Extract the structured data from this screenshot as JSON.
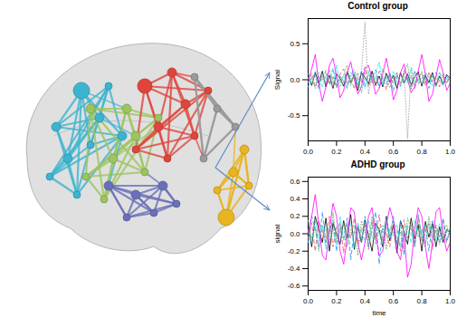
{
  "chart_data": [
    {
      "type": "line",
      "title": "Control group",
      "y_label": "Signal",
      "xlim": [
        0,
        1
      ],
      "xticks": [
        {
          "value": 0,
          "label": "0.0"
        },
        0.2,
        0.4,
        0.6,
        0.8,
        {
          "value": 1,
          "label": "1.0"
        }
      ],
      "ylim": [
        -0.85,
        0.85
      ],
      "yticks": [
        {
          "value": -0.5,
          "label": "-0.5"
        },
        {
          "value": 0,
          "label": "0.0"
        },
        {
          "value": 0.5,
          "label": "0.5"
        }
      ],
      "x": [
        0,
        0.025,
        0.05,
        0.075,
        0.1,
        0.125,
        0.15,
        0.175,
        0.2,
        0.225,
        0.25,
        0.275,
        0.3,
        0.325,
        0.35,
        0.375,
        0.4,
        0.425,
        0.45,
        0.475,
        0.5,
        0.525,
        0.55,
        0.575,
        0.6,
        0.625,
        0.65,
        0.675,
        0.7,
        0.725,
        0.75,
        0.775,
        0.8,
        0.825,
        0.85,
        0.875,
        0.9,
        0.925,
        0.95,
        0.975,
        1
      ],
      "series": [
        {
          "color": "#000000",
          "line_style": "solid",
          "values": [
            0.05,
            -0.08,
            0.1,
            -0.05,
            0.12,
            -0.1,
            0.06,
            -0.12,
            0.08,
            0.02,
            -0.09,
            0.11,
            -0.04,
            0.07,
            -0.15,
            0.1,
            0.03,
            -0.06,
            0.12,
            -0.08,
            0.05,
            -0.1,
            0.09,
            -0.03,
            0.06,
            -0.12,
            0.1,
            -0.05,
            0.08,
            -0.07,
            0.04,
            0.11,
            -0.09,
            0.06,
            -0.04,
            0.1,
            -0.08,
            0.05,
            -0.06,
            0.07,
            0.02
          ]
        },
        {
          "color": "#df536b",
          "line_style": "dashed",
          "values": [
            -0.04,
            0.09,
            -0.1,
            0.06,
            -0.02,
            0.13,
            -0.07,
            0.04,
            -0.11,
            0.08,
            0.15,
            -0.06,
            0.03,
            -0.13,
            0.09,
            -0.04,
            0.18,
            -0.1,
            0.05,
            -0.08,
            0.12,
            0.02,
            -0.14,
            0.07,
            -0.05,
            0.1,
            -0.09,
            0.13,
            -0.02,
            0.06,
            -0.12,
            0.04,
            0.09,
            -0.07,
            0.11,
            -0.03,
            0.05,
            -0.1,
            0.08,
            -0.04,
            0.06
          ]
        },
        {
          "color": "#4daf4a",
          "line_style": "dotted",
          "values": [
            0.08,
            0.02,
            -0.12,
            0.1,
            0.05,
            -0.06,
            0.14,
            -0.03,
            0.02,
            -0.1,
            0.06,
            0.2,
            -0.08,
            0.1,
            0.04,
            -0.18,
            0.08,
            0.12,
            -0.05,
            0.03,
            -0.09,
            0.15,
            0.06,
            -0.11,
            0.02,
            0.08,
            -0.06,
            0.1,
            0.22,
            -0.14,
            0.05,
            -0.03,
            0.12,
            -0.08,
            0.02,
            0.06,
            -0.1,
            0.09,
            0.03,
            -0.05,
            0.04
          ]
        },
        {
          "color": "#2297e6",
          "line_style": "dashed",
          "values": [
            -0.1,
            0.04,
            0.07,
            -0.13,
            0.09,
            0.02,
            -0.05,
            0.16,
            -0.09,
            0.05,
            -0.02,
            -0.12,
            0.1,
            0.03,
            -0.07,
            0.12,
            -0.1,
            0.06,
            0.02,
            0.14,
            -0.11,
            0.04,
            -0.06,
            0.1,
            -0.16,
            0.05,
            0.08,
            -0.04,
            0.03,
            -0.1,
            0.13,
            -0.06,
            0.02,
            0.08,
            -0.12,
            0.06,
            0.1,
            -0.03,
            -0.08,
            0.05,
            -0.02
          ]
        },
        {
          "color": "#28e2e5",
          "line_style": "dotdash",
          "values": [
            0.03,
            -0.06,
            0.12,
            0.05,
            -0.1,
            0.08,
            -0.02,
            -0.09,
            0.2,
            -0.05,
            0.07,
            -0.1,
            0.04,
            0.15,
            -0.06,
            0.02,
            -0.12,
            0.1,
            -0.03,
            0.06,
            0.25,
            -0.08,
            0.03,
            -0.05,
            0.12,
            -0.02,
            -0.1,
            0.07,
            -0.05,
            0.18,
            -0.07,
            0.02,
            -0.04,
            0.1,
            0.05,
            -0.09,
            0.03,
            0.11,
            -0.05,
            0.02,
            -0.03
          ]
        },
        {
          "color": "#ff00ff",
          "line_style": "solid",
          "values": [
            0.0,
            0.15,
            0.35,
            -0.05,
            -0.3,
            -0.1,
            0.2,
            0.3,
            0.05,
            -0.25,
            -0.15,
            0.1,
            0.25,
            0.0,
            -0.2,
            -0.1,
            0.15,
            0.2,
            0.02,
            -0.2,
            -0.12,
            0.08,
            0.3,
            0.05,
            -0.28,
            -0.15,
            0.1,
            0.22,
            0.0,
            -0.18,
            -0.1,
            0.12,
            0.35,
            0.08,
            -0.3,
            -0.2,
            0.05,
            0.28,
            0.1,
            -0.15,
            -0.05
          ]
        },
        {
          "color": "#9e9e9e",
          "line_style": "dotted",
          "values": [
            0.02,
            -0.04,
            0.05,
            -0.02,
            0.06,
            -0.03,
            0.04,
            -0.06,
            0.03,
            0.05,
            -0.04,
            0.02,
            -0.05,
            0.06,
            -0.02,
            0.1,
            0.8,
            -0.2,
            0.05,
            -0.04,
            0.03,
            -0.06,
            0.04,
            0.02,
            -0.03,
            0.06,
            -0.05,
            0.1,
            -0.82,
            0.15,
            -0.04,
            0.03,
            -0.05,
            0.02,
            0.04,
            -0.03,
            0.05,
            -0.02,
            0.03,
            -0.04,
            0.02
          ]
        }
      ]
    },
    {
      "type": "line",
      "title": "ADHD group",
      "x_label": "time",
      "y_label": "signal",
      "xlim": [
        0,
        1
      ],
      "xticks": [
        {
          "value": 0,
          "label": "0.0"
        },
        0.2,
        0.4,
        0.6,
        0.8,
        {
          "value": 1,
          "label": "1.0"
        }
      ],
      "ylim": [
        -0.65,
        0.65
      ],
      "yticks": [
        -0.6,
        -0.4,
        -0.2,
        {
          "value": 0,
          "label": "0.0"
        },
        0.2,
        0.4,
        0.6
      ],
      "x": [
        0,
        0.025,
        0.05,
        0.075,
        0.1,
        0.125,
        0.15,
        0.175,
        0.2,
        0.225,
        0.25,
        0.275,
        0.3,
        0.325,
        0.35,
        0.375,
        0.4,
        0.425,
        0.45,
        0.475,
        0.5,
        0.525,
        0.55,
        0.575,
        0.6,
        0.625,
        0.65,
        0.675,
        0.7,
        0.725,
        0.75,
        0.775,
        0.8,
        0.825,
        0.85,
        0.875,
        0.9,
        0.925,
        0.95,
        0.975,
        1
      ],
      "series": [
        {
          "color": "#000000",
          "line_style": "solid",
          "values": [
            0.1,
            -0.15,
            0.2,
            0.05,
            -0.1,
            0.18,
            -0.2,
            0.12,
            0.0,
            -0.12,
            0.15,
            -0.05,
            0.22,
            -0.18,
            0.08,
            -0.1,
            0.16,
            -0.02,
            -0.2,
            0.12,
            0.05,
            -0.15,
            0.2,
            -0.08,
            0.1,
            -0.22,
            0.15,
            0.02,
            -0.12,
            0.18,
            -0.06,
            0.1,
            -0.2,
            0.14,
            -0.04,
            0.12,
            -0.15,
            0.08,
            -0.1,
            0.05,
            0.02
          ]
        },
        {
          "color": "#df536b",
          "line_style": "dashed",
          "values": [
            -0.05,
            0.12,
            -0.2,
            0.15,
            0.02,
            -0.1,
            0.2,
            -0.15,
            0.08,
            0.12,
            -0.22,
            0.1,
            -0.05,
            0.18,
            -0.12,
            0.05,
            0.1,
            -0.18,
            0.15,
            -0.06,
            0.22,
            -0.1,
            0.02,
            -0.15,
            0.12,
            0.06,
            -0.2,
            0.16,
            -0.05,
            0.1,
            -0.14,
            0.2,
            -0.08,
            0.02,
            0.12,
            -0.18,
            0.1,
            -0.04,
            0.15,
            -0.1,
            0.05
          ]
        },
        {
          "color": "#4daf4a",
          "line_style": "dotted",
          "values": [
            0.15,
            -0.05,
            0.08,
            -0.2,
            0.1,
            0.05,
            -0.12,
            0.25,
            -0.1,
            0.02,
            0.12,
            -0.15,
            0.05,
            0.1,
            -0.25,
            0.15,
            0.02,
            -0.08,
            0.2,
            -0.12,
            0.06,
            0.1,
            -0.18,
            0.05,
            0.15,
            -0.1,
            0.02,
            -0.2,
            0.18,
            0.06,
            -0.1,
            0.12,
            0.02,
            -0.15,
            0.2,
            -0.05,
            0.08,
            -0.12,
            0.05,
            0.1,
            -0.04
          ]
        },
        {
          "color": "#2297e6",
          "line_style": "dashed",
          "values": [
            -0.1,
            0.2,
            0.05,
            -0.15,
            0.25,
            -0.1,
            0.02,
            0.15,
            -0.2,
            0.1,
            -0.05,
            0.18,
            -0.3,
            0.05,
            0.12,
            -0.1,
            0.2,
            -0.15,
            0.05,
            0.25,
            -0.35,
            0.08,
            0.1,
            -0.05,
            0.2,
            -0.12,
            0.15,
            -0.25,
            0.1,
            0.05,
            -0.15,
            0.22,
            -0.05,
            0.1,
            -0.2,
            0.15,
            0.02,
            -0.1,
            0.18,
            -0.08,
            0.05
          ]
        },
        {
          "color": "#28e2e5",
          "line_style": "dotdash",
          "values": [
            0.05,
            -0.1,
            0.15,
            -0.05,
            0.1,
            -0.18,
            0.08,
            0.02,
            -0.12,
            0.2,
            -0.08,
            0.05,
            0.12,
            -0.15,
            0.1,
            0.02,
            -0.1,
            0.15,
            -0.05,
            0.08,
            0.02,
            -0.12,
            0.18,
            -0.05,
            0.02,
            0.1,
            -0.15,
            0.08,
            0.05,
            -0.1,
            0.15,
            -0.02,
            0.06,
            -0.12,
            0.1,
            0.02,
            -0.08,
            0.12,
            -0.05,
            0.02,
            0.06
          ]
        },
        {
          "color": "#ff00ff",
          "line_style": "solid",
          "values": [
            0.0,
            0.2,
            0.45,
            0.1,
            -0.25,
            -0.3,
            0.05,
            0.35,
            0.2,
            -0.2,
            -0.35,
            -0.05,
            0.3,
            0.25,
            -0.1,
            -0.3,
            -0.1,
            0.2,
            0.3,
            0.0,
            -0.25,
            -0.2,
            0.1,
            0.3,
            0.15,
            -0.2,
            -0.3,
            0.0,
            -0.5,
            -0.35,
            0.05,
            0.3,
            0.2,
            -0.15,
            -0.4,
            -0.1,
            0.25,
            0.3,
            0.0,
            -0.2,
            -0.1
          ]
        },
        {
          "color": "#9e9e9e",
          "line_style": "dotted",
          "values": [
            0.03,
            -0.05,
            0.06,
            -0.02,
            0.04,
            -0.06,
            0.02,
            0.05,
            -0.04,
            0.03,
            -0.05,
            0.06,
            -0.03,
            0.02,
            0.05,
            -0.04,
            0.06,
            -0.02,
            0.03,
            -0.05,
            0.04,
            0.02,
            -0.06,
            0.05,
            -0.03,
            0.02,
            0.04,
            -0.05,
            0.06,
            -0.02,
            0.03,
            -0.04,
            0.05,
            -0.03,
            0.02,
            0.06,
            -0.04,
            0.03,
            -0.02,
            0.05,
            -0.03
          ]
        }
      ]
    }
  ]
}
